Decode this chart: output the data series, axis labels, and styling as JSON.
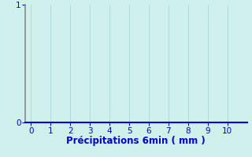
{
  "title": "",
  "xlabel": "Précipitations 6min ( mm )",
  "ylabel": "",
  "xlim": [
    -0.3,
    11
  ],
  "ylim": [
    0,
    1
  ],
  "xticks": [
    0,
    1,
    2,
    3,
    4,
    5,
    6,
    7,
    8,
    9,
    10
  ],
  "yticks": [
    0,
    1
  ],
  "bg_color": "#cff0ec",
  "grid_color": "#aadddd",
  "xaxis_color": "#0000cc",
  "yaxis_color": "#888888",
  "tick_color": "#0000cc",
  "label_color": "#0000cc",
  "xlabel_fontsize": 8.5,
  "tick_fontsize": 7.5
}
